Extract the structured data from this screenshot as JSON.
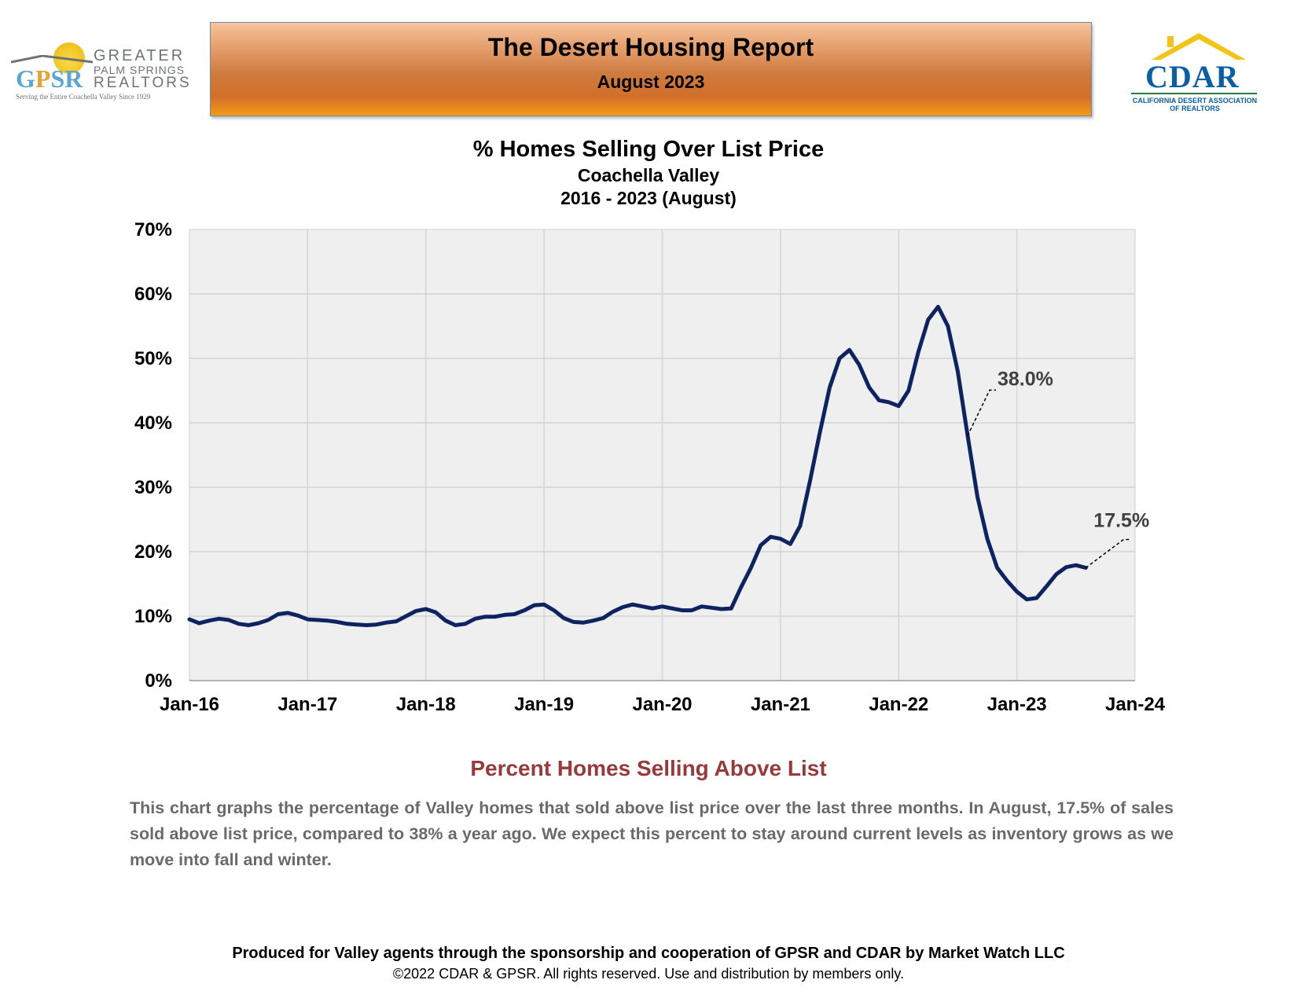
{
  "header": {
    "title": "The Desert Housing Report",
    "subtitle": "August 2023",
    "gpsr_logo": {
      "initials": [
        "G",
        "P",
        "S",
        "R"
      ],
      "line1": "GREATER",
      "line2": "PALM SPRINGS",
      "line3": "REALTORS",
      "tagline": "Serving the Entire Coachella Valley Since 1929"
    },
    "cdar_logo": {
      "word": "CDAR",
      "tagline1": "CALIFORNIA DESERT ASSOCIATION",
      "tagline2": "OF REALTORS"
    }
  },
  "colors": {
    "line": "#0d2461",
    "plot_bg": "#efefef",
    "grid": "#d4d4d4",
    "section_head": "#983a3c",
    "body_text": "#6a6a6a",
    "annotation": "#404040"
  },
  "chart_data": {
    "type": "line",
    "title": "% Homes Selling Over List Price",
    "subtitle1": "Coachella Valley",
    "subtitle2": "2016 - 2023 (August)",
    "xlabel": "",
    "ylabel": "",
    "grid": true,
    "ylim": [
      0,
      70
    ],
    "x_range": [
      "2016-01",
      "2024-01"
    ],
    "y_ticks": [
      "0%",
      "10%",
      "20%",
      "30%",
      "40%",
      "50%",
      "60%",
      "70%"
    ],
    "x_ticks": [
      "Jan-16",
      "Jan-17",
      "Jan-18",
      "Jan-19",
      "Jan-20",
      "Jan-21",
      "Jan-22",
      "Jan-23",
      "Jan-24"
    ],
    "series": [
      {
        "name": "",
        "points": [
          [
            "2016-01",
            9.5
          ],
          [
            "2016-02",
            8.9
          ],
          [
            "2016-03",
            9.3
          ],
          [
            "2016-04",
            9.6
          ],
          [
            "2016-05",
            9.4
          ],
          [
            "2016-06",
            8.8
          ],
          [
            "2016-07",
            8.6
          ],
          [
            "2016-08",
            8.9
          ],
          [
            "2016-09",
            9.4
          ],
          [
            "2016-10",
            10.3
          ],
          [
            "2016-11",
            10.5
          ],
          [
            "2016-12",
            10.1
          ],
          [
            "2017-01",
            9.5
          ],
          [
            "2017-02",
            9.4
          ],
          [
            "2017-03",
            9.3
          ],
          [
            "2017-04",
            9.1
          ],
          [
            "2017-05",
            8.8
          ],
          [
            "2017-06",
            8.7
          ],
          [
            "2017-07",
            8.6
          ],
          [
            "2017-08",
            8.7
          ],
          [
            "2017-09",
            9.0
          ],
          [
            "2017-10",
            9.2
          ],
          [
            "2017-11",
            10.0
          ],
          [
            "2017-12",
            10.8
          ],
          [
            "2018-01",
            11.1
          ],
          [
            "2018-02",
            10.6
          ],
          [
            "2018-03",
            9.3
          ],
          [
            "2018-04",
            8.6
          ],
          [
            "2018-05",
            8.8
          ],
          [
            "2018-06",
            9.6
          ],
          [
            "2018-07",
            9.9
          ],
          [
            "2018-08",
            9.9
          ],
          [
            "2018-09",
            10.2
          ],
          [
            "2018-10",
            10.3
          ],
          [
            "2018-11",
            10.9
          ],
          [
            "2018-12",
            11.7
          ],
          [
            "2019-01",
            11.8
          ],
          [
            "2019-02",
            10.9
          ],
          [
            "2019-03",
            9.7
          ],
          [
            "2019-04",
            9.1
          ],
          [
            "2019-05",
            9.0
          ],
          [
            "2019-06",
            9.3
          ],
          [
            "2019-07",
            9.7
          ],
          [
            "2019-08",
            10.7
          ],
          [
            "2019-09",
            11.4
          ],
          [
            "2019-10",
            11.8
          ],
          [
            "2019-11",
            11.5
          ],
          [
            "2019-12",
            11.2
          ],
          [
            "2020-01",
            11.5
          ],
          [
            "2020-02",
            11.2
          ],
          [
            "2020-03",
            10.9
          ],
          [
            "2020-04",
            10.9
          ],
          [
            "2020-05",
            11.5
          ],
          [
            "2020-06",
            11.3
          ],
          [
            "2020-07",
            11.1
          ],
          [
            "2020-08",
            11.2
          ],
          [
            "2020-09",
            14.5
          ],
          [
            "2020-10",
            17.5
          ],
          [
            "2020-11",
            21.0
          ],
          [
            "2020-12",
            22.3
          ],
          [
            "2021-01",
            22.0
          ],
          [
            "2021-02",
            21.2
          ],
          [
            "2021-03",
            24.0
          ],
          [
            "2021-04",
            31.0
          ],
          [
            "2021-05",
            38.5
          ],
          [
            "2021-06",
            45.5
          ],
          [
            "2021-07",
            50.0
          ],
          [
            "2021-08",
            51.3
          ],
          [
            "2021-09",
            49.0
          ],
          [
            "2021-10",
            45.5
          ],
          [
            "2021-11",
            43.5
          ],
          [
            "2021-12",
            43.2
          ],
          [
            "2022-01",
            42.6
          ],
          [
            "2022-02",
            45.0
          ],
          [
            "2022-03",
            51.0
          ],
          [
            "2022-04",
            56.0
          ],
          [
            "2022-05",
            58.0
          ],
          [
            "2022-06",
            55.0
          ],
          [
            "2022-07",
            48.0
          ],
          [
            "2022-08",
            38.0
          ],
          [
            "2022-09",
            28.5
          ],
          [
            "2022-10",
            22.0
          ],
          [
            "2022-11",
            17.5
          ],
          [
            "2022-12",
            15.5
          ],
          [
            "2023-01",
            13.8
          ],
          [
            "2023-02",
            12.6
          ],
          [
            "2023-03",
            12.8
          ],
          [
            "2023-04",
            14.6
          ],
          [
            "2023-05",
            16.5
          ],
          [
            "2023-06",
            17.6
          ],
          [
            "2023-07",
            17.9
          ],
          [
            "2023-08",
            17.5
          ]
        ]
      }
    ],
    "annotations": [
      {
        "text": "38.0%",
        "at": [
          "2022-08",
          38.0
        ]
      },
      {
        "text": "17.5%",
        "at": [
          "2023-08",
          17.5
        ]
      }
    ]
  },
  "section": {
    "heading": "Percent Homes Selling Above List",
    "body": "This chart graphs the percentage of Valley homes that sold above list price over the last three months. In August, 17.5% of sales sold above list price, compared to 38% a year ago. We expect this percent to stay around current levels as inventory grows as we move into fall and winter."
  },
  "footer": {
    "line1": "Produced for Valley agents through the sponsorship and cooperation of GPSR and CDAR by Market Watch LLC",
    "line2": "©2022 CDAR & GPSR.  All rights reserved.  Use and distribution by members only."
  }
}
